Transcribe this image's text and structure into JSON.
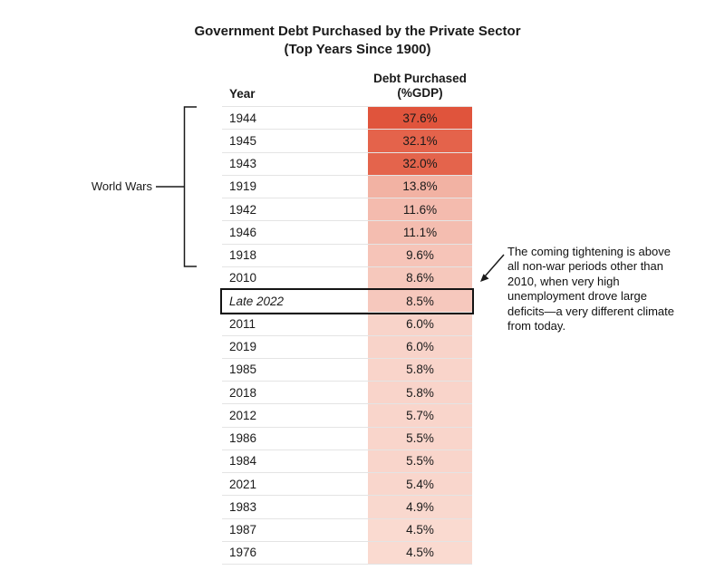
{
  "title": {
    "line1": "Government Debt Purchased by the Private Sector",
    "line2": "(Top Years Since 1900)"
  },
  "columns": {
    "year": "Year",
    "value_line1": "Debt Purchased",
    "value_line2": "(%GDP)"
  },
  "bracket_label": "World Wars",
  "annotation": {
    "text": "The coming tightening is above all non-war periods other than 2010, when very high unemployment drove large deficits—a very different climate from today."
  },
  "chart_data": {
    "type": "table",
    "title": "Government Debt Purchased by the Private Sector (Top Years Since 1900)",
    "columns": [
      "Year",
      "Debt Purchased (%GDP)"
    ],
    "heatmap": {
      "min_color": "#FDEDE6",
      "max_color": "#E04B30",
      "scale_max": 37.6
    },
    "group_label": "World Wars",
    "group_rows": [
      "1944",
      "1945",
      "1943",
      "1919",
      "1942",
      "1946",
      "1918"
    ],
    "rows": [
      {
        "year": "1944",
        "value": "37.6%",
        "value_num": 37.6,
        "color": "#E0543C",
        "italic": false,
        "highlight": false
      },
      {
        "year": "1945",
        "value": "32.1%",
        "value_num": 32.1,
        "color": "#E4634B",
        "italic": false,
        "highlight": false
      },
      {
        "year": "1943",
        "value": "32.0%",
        "value_num": 32.0,
        "color": "#E4644C",
        "italic": false,
        "highlight": false
      },
      {
        "year": "1919",
        "value": "13.8%",
        "value_num": 13.8,
        "color": "#F2B2A3",
        "italic": false,
        "highlight": false
      },
      {
        "year": "1942",
        "value": "11.6%",
        "value_num": 11.6,
        "color": "#F4BBAE",
        "italic": false,
        "highlight": false
      },
      {
        "year": "1946",
        "value": "11.1%",
        "value_num": 11.1,
        "color": "#F4BDB0",
        "italic": false,
        "highlight": false
      },
      {
        "year": "1918",
        "value": "9.6%",
        "value_num": 9.6,
        "color": "#F6C4B8",
        "italic": false,
        "highlight": false
      },
      {
        "year": "2010",
        "value": "8.6%",
        "value_num": 8.6,
        "color": "#F6C8BC",
        "italic": false,
        "highlight": false
      },
      {
        "year": "Late 2022",
        "value": "8.5%",
        "value_num": 8.5,
        "color": "#F6C8BD",
        "italic": true,
        "highlight": true
      },
      {
        "year": "2011",
        "value": "6.0%",
        "value_num": 6.0,
        "color": "#F8D3C9",
        "italic": false,
        "highlight": false
      },
      {
        "year": "2019",
        "value": "6.0%",
        "value_num": 6.0,
        "color": "#F8D3C9",
        "italic": false,
        "highlight": false
      },
      {
        "year": "1985",
        "value": "5.8%",
        "value_num": 5.8,
        "color": "#F9D4CA",
        "italic": false,
        "highlight": false
      },
      {
        "year": "2018",
        "value": "5.8%",
        "value_num": 5.8,
        "color": "#F9D4CA",
        "italic": false,
        "highlight": false
      },
      {
        "year": "2012",
        "value": "5.7%",
        "value_num": 5.7,
        "color": "#F9D5CB",
        "italic": false,
        "highlight": false
      },
      {
        "year": "1986",
        "value": "5.5%",
        "value_num": 5.5,
        "color": "#F9D5CB",
        "italic": false,
        "highlight": false
      },
      {
        "year": "1984",
        "value": "5.5%",
        "value_num": 5.5,
        "color": "#F9D5CB",
        "italic": false,
        "highlight": false
      },
      {
        "year": "2021",
        "value": "5.4%",
        "value_num": 5.4,
        "color": "#F9D6CC",
        "italic": false,
        "highlight": false
      },
      {
        "year": "1983",
        "value": "4.9%",
        "value_num": 4.9,
        "color": "#F9D8CE",
        "italic": false,
        "highlight": false
      },
      {
        "year": "1987",
        "value": "4.5%",
        "value_num": 4.5,
        "color": "#FADAD0",
        "italic": false,
        "highlight": false
      },
      {
        "year": "1976",
        "value": "4.5%",
        "value_num": 4.5,
        "color": "#FADAD0",
        "italic": false,
        "highlight": false
      }
    ]
  }
}
